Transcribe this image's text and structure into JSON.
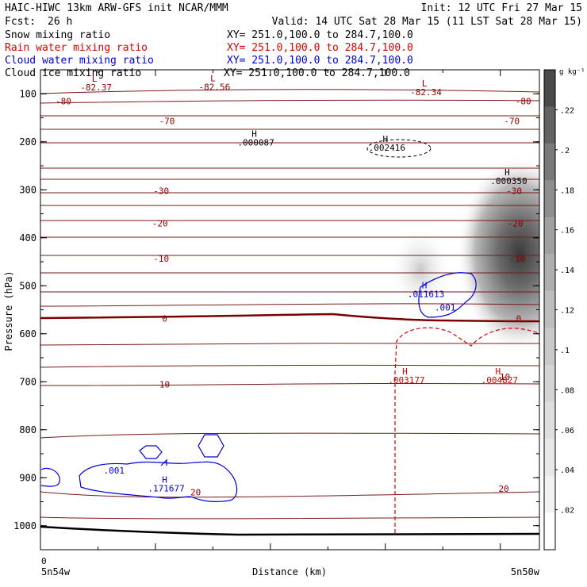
{
  "header": {
    "title_left": "HAIC-HIWC 13km ARW-GFS init  NCAR/MMM",
    "title_right": "Init: 12 UTC Fri 27 Mar 15",
    "fcst_label": "Fcst:",
    "fcst_value": "26 h",
    "valid": "Valid: 14 UTC Sat 28 Mar 15 (11 LST Sat 28 Mar 15)"
  },
  "fields": [
    {
      "name": "Snow mixing ratio",
      "xy": "XY= 251.0,100.0 to 284.7,100.0",
      "color": "#000000"
    },
    {
      "name": "Rain water mixing ratio",
      "xy": "XY= 251.0,100.0 to 284.7,100.0",
      "color": "#dd0000"
    },
    {
      "name": "Cloud water mixing ratio",
      "xy": "XY= 251.0,100.0 to 284.7,100.0",
      "color": "#0000dd"
    },
    {
      "name": "Cloud ice mixing ratio",
      "xy": "XY= 251.0,100.0 to 284.7,100.0",
      "color": "#000000"
    }
  ],
  "chart_data": {
    "type": "contour cross-section",
    "ylabel": "Pressure (hPa)",
    "xlabel": "Distance (km)",
    "y_ticks": [
      100,
      200,
      300,
      400,
      500,
      600,
      700,
      800,
      900,
      1000
    ],
    "y_range_hpa": [
      1050,
      50
    ],
    "x_range_km": [
      0,
      434
    ],
    "x_origin_label": "0",
    "x_left_label": "5n54w",
    "x_right_label": "5n50w",
    "colorbar": {
      "unit": "g kg⁻¹",
      "ticks": [
        ".02",
        ".04",
        ".06",
        ".08",
        ".1",
        ".12",
        ".14",
        ".16",
        ".18",
        ".2",
        ".22"
      ],
      "range": [
        0,
        0.24
      ],
      "colors": [
        "#ffffff",
        "#f2f2f2",
        "#e8e8e8",
        "#dedede",
        "#d4d4d4",
        "#c9c9c9",
        "#bdbdbd",
        "#afafaf",
        "#a0a0a0",
        "#8e8e8e",
        "#7a7a7a",
        "#636363",
        "#4a4a4a"
      ]
    },
    "temperature_labels": [
      {
        "text": "-80",
        "p": 115,
        "x": 20
      },
      {
        "text": "-80",
        "p": 115,
        "x": 420
      },
      {
        "text": "-70",
        "p": 157,
        "x": 110
      },
      {
        "text": "-70",
        "p": 157,
        "x": 410
      },
      {
        "text": "-30",
        "p": 302,
        "x": 105
      },
      {
        "text": "-30",
        "p": 302,
        "x": 412
      },
      {
        "text": "-20",
        "p": 370,
        "x": 104
      },
      {
        "text": "-20",
        "p": 370,
        "x": 413
      },
      {
        "text": "-10",
        "p": 443,
        "x": 105
      },
      {
        "text": "-10",
        "p": 443,
        "x": 415
      },
      {
        "text": "0",
        "p": 568,
        "x": 108
      },
      {
        "text": "0",
        "p": 568,
        "x": 416
      },
      {
        "text": "10",
        "p": 705,
        "x": 108
      },
      {
        "text": "10",
        "p": 690,
        "x": 404
      },
      {
        "text": "20",
        "p": 930,
        "x": 135
      },
      {
        "text": "20",
        "p": 923,
        "x": 403
      }
    ],
    "extrema": [
      {
        "symbol": "L",
        "value": "-82.37",
        "p": 75,
        "x": 47,
        "color": "#8b0000"
      },
      {
        "symbol": "L",
        "value": "-82.56",
        "p": 74,
        "x": 150,
        "color": "#8b0000"
      },
      {
        "symbol": "L",
        "value": "-82.34",
        "p": 85,
        "x": 334,
        "color": "#8b0000"
      },
      {
        "symbol": "H",
        "value": ".000087",
        "p": 190,
        "x": 186,
        "color": "#000000"
      },
      {
        "symbol": "H",
        "value": ".002416",
        "p": 200,
        "x": 300,
        "color": "#000000"
      },
      {
        "symbol": "H",
        "value": ".000350",
        "p": 270,
        "x": 406,
        "color": "#000000"
      },
      {
        "symbol": "H",
        "value": ".011613",
        "p": 505,
        "x": 334,
        "color": "#0000dd"
      },
      {
        "symbol": "H",
        "value": ".003177",
        "p": 685,
        "x": 317,
        "color": "#dd0000"
      },
      {
        "symbol": "H",
        "value": ".004827",
        "p": 685,
        "x": 398,
        "color": "#dd0000"
      },
      {
        "symbol": "H",
        "value": ".171677",
        "p": 910,
        "x": 108,
        "color": "#0000dd"
      }
    ],
    "contour_labels": [
      {
        "text": ".001",
        "p": 545,
        "x": 352,
        "color": "#0000dd"
      },
      {
        "text": ".001",
        "p": 885,
        "x": 64,
        "color": "#0000dd"
      }
    ]
  }
}
